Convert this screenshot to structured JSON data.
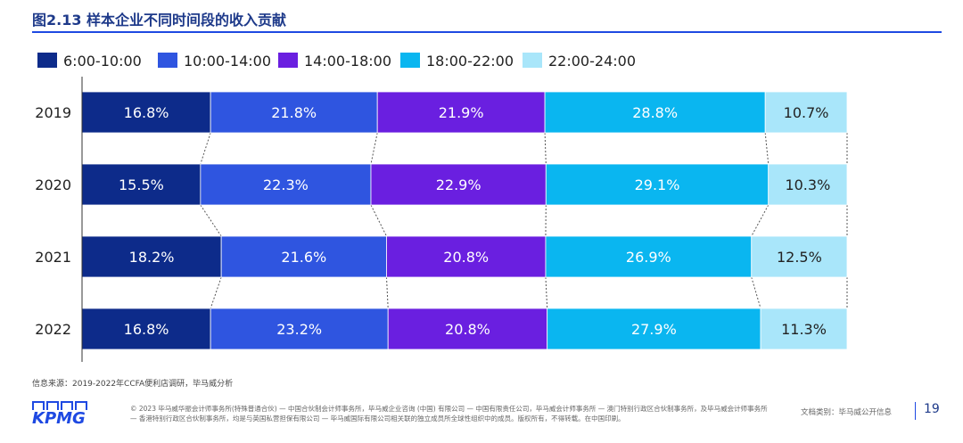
{
  "title": "图2.13  样本企业不同时间段的收入贡献",
  "chart_data": {
    "type": "bar",
    "stacked": true,
    "orientation": "horizontal",
    "normalized": true,
    "categories": [
      "2019",
      "2020",
      "2021",
      "2022"
    ],
    "series": [
      {
        "name": "6:00-10:00",
        "color": "#0d2b8a",
        "values": [
          16.8,
          15.5,
          18.2,
          16.8
        ]
      },
      {
        "name": "10:00-14:00",
        "color": "#2f55e0",
        "values": [
          21.8,
          22.3,
          21.6,
          23.2
        ]
      },
      {
        "name": "14:00-18:00",
        "color": "#6a1fe0",
        "values": [
          21.9,
          22.9,
          20.8,
          20.8
        ]
      },
      {
        "name": "18:00-22:00",
        "color": "#0ab6f0",
        "values": [
          28.8,
          29.1,
          26.9,
          27.9
        ]
      },
      {
        "name": "22:00-24:00",
        "color": "#a9e6fa",
        "values": [
          10.7,
          10.3,
          12.5,
          11.3
        ]
      }
    ],
    "data_labels": [
      [
        "16.8%",
        "21.8%",
        "21.9%",
        "28.8%",
        "10.7%"
      ],
      [
        "15.5%",
        "22.3%",
        "22.9%",
        "29.1%",
        "10.3%"
      ],
      [
        "18.2%",
        "21.6%",
        "20.8%",
        "26.9%",
        "12.5%"
      ],
      [
        "16.8%",
        "23.2%",
        "20.8%",
        "27.9%",
        "11.3%"
      ]
    ],
    "legend_position": "top-left",
    "connector_lines": "dashed",
    "grid": false
  },
  "source": "信息来源：2019-2022年CCFA便利店调研，毕马威分析",
  "footer": {
    "logo": "KPMG",
    "legal": "© 2023 毕马威华振会计师事务所(特殊普通合伙) — 中国合伙制会计师事务所，毕马威企业咨询 (中国) 有限公司 — 中国有限责任公司，毕马威会计师事务所 — 澳门特别行政区合伙制事务所，及毕马威会计师事务所 — 香港特别行政区合伙制事务所，均是与英国私营担保有限公司 — 毕马威国际有限公司相关联的独立成员所全球性组织中的成员。版权所有，不得转载。在中国印刷。",
    "doc_type": "文档类别：毕马威公开信息",
    "page_number": "19"
  }
}
